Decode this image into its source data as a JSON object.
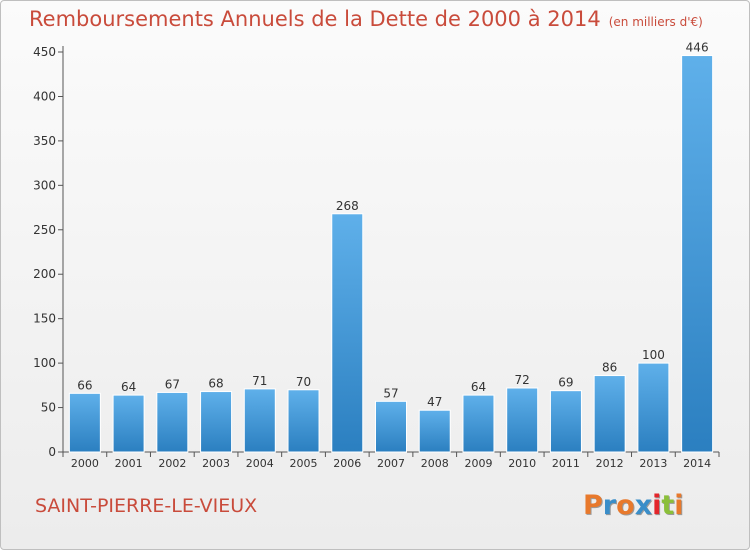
{
  "title": "Remboursements Annuels de la Dette de 2000 à 2014",
  "subtitle": "(en milliers d'€)",
  "commune": "SAINT-PIERRE-LE-VIEUX",
  "logo": {
    "text": "Proxiti",
    "letter_colors": [
      "#e8792c",
      "#3a8ec9",
      "#e8792c",
      "#3a8ec9",
      "#e3262b",
      "#8bbf3a",
      "#e8792c"
    ]
  },
  "chart_data": {
    "type": "bar",
    "categories": [
      "2000",
      "2001",
      "2002",
      "2003",
      "2004",
      "2005",
      "2006",
      "2007",
      "2008",
      "2009",
      "2010",
      "2011",
      "2012",
      "2013",
      "2014"
    ],
    "values": [
      66,
      64,
      67,
      68,
      71,
      70,
      268,
      57,
      47,
      64,
      72,
      69,
      86,
      100,
      446
    ],
    "ylim": [
      0,
      450
    ],
    "yticks": [
      0,
      50,
      100,
      150,
      200,
      250,
      300,
      350,
      400,
      450
    ],
    "grid": false,
    "colors": {
      "bar_top": "#5fb0ea",
      "bar_bottom": "#2b7fc0"
    }
  }
}
